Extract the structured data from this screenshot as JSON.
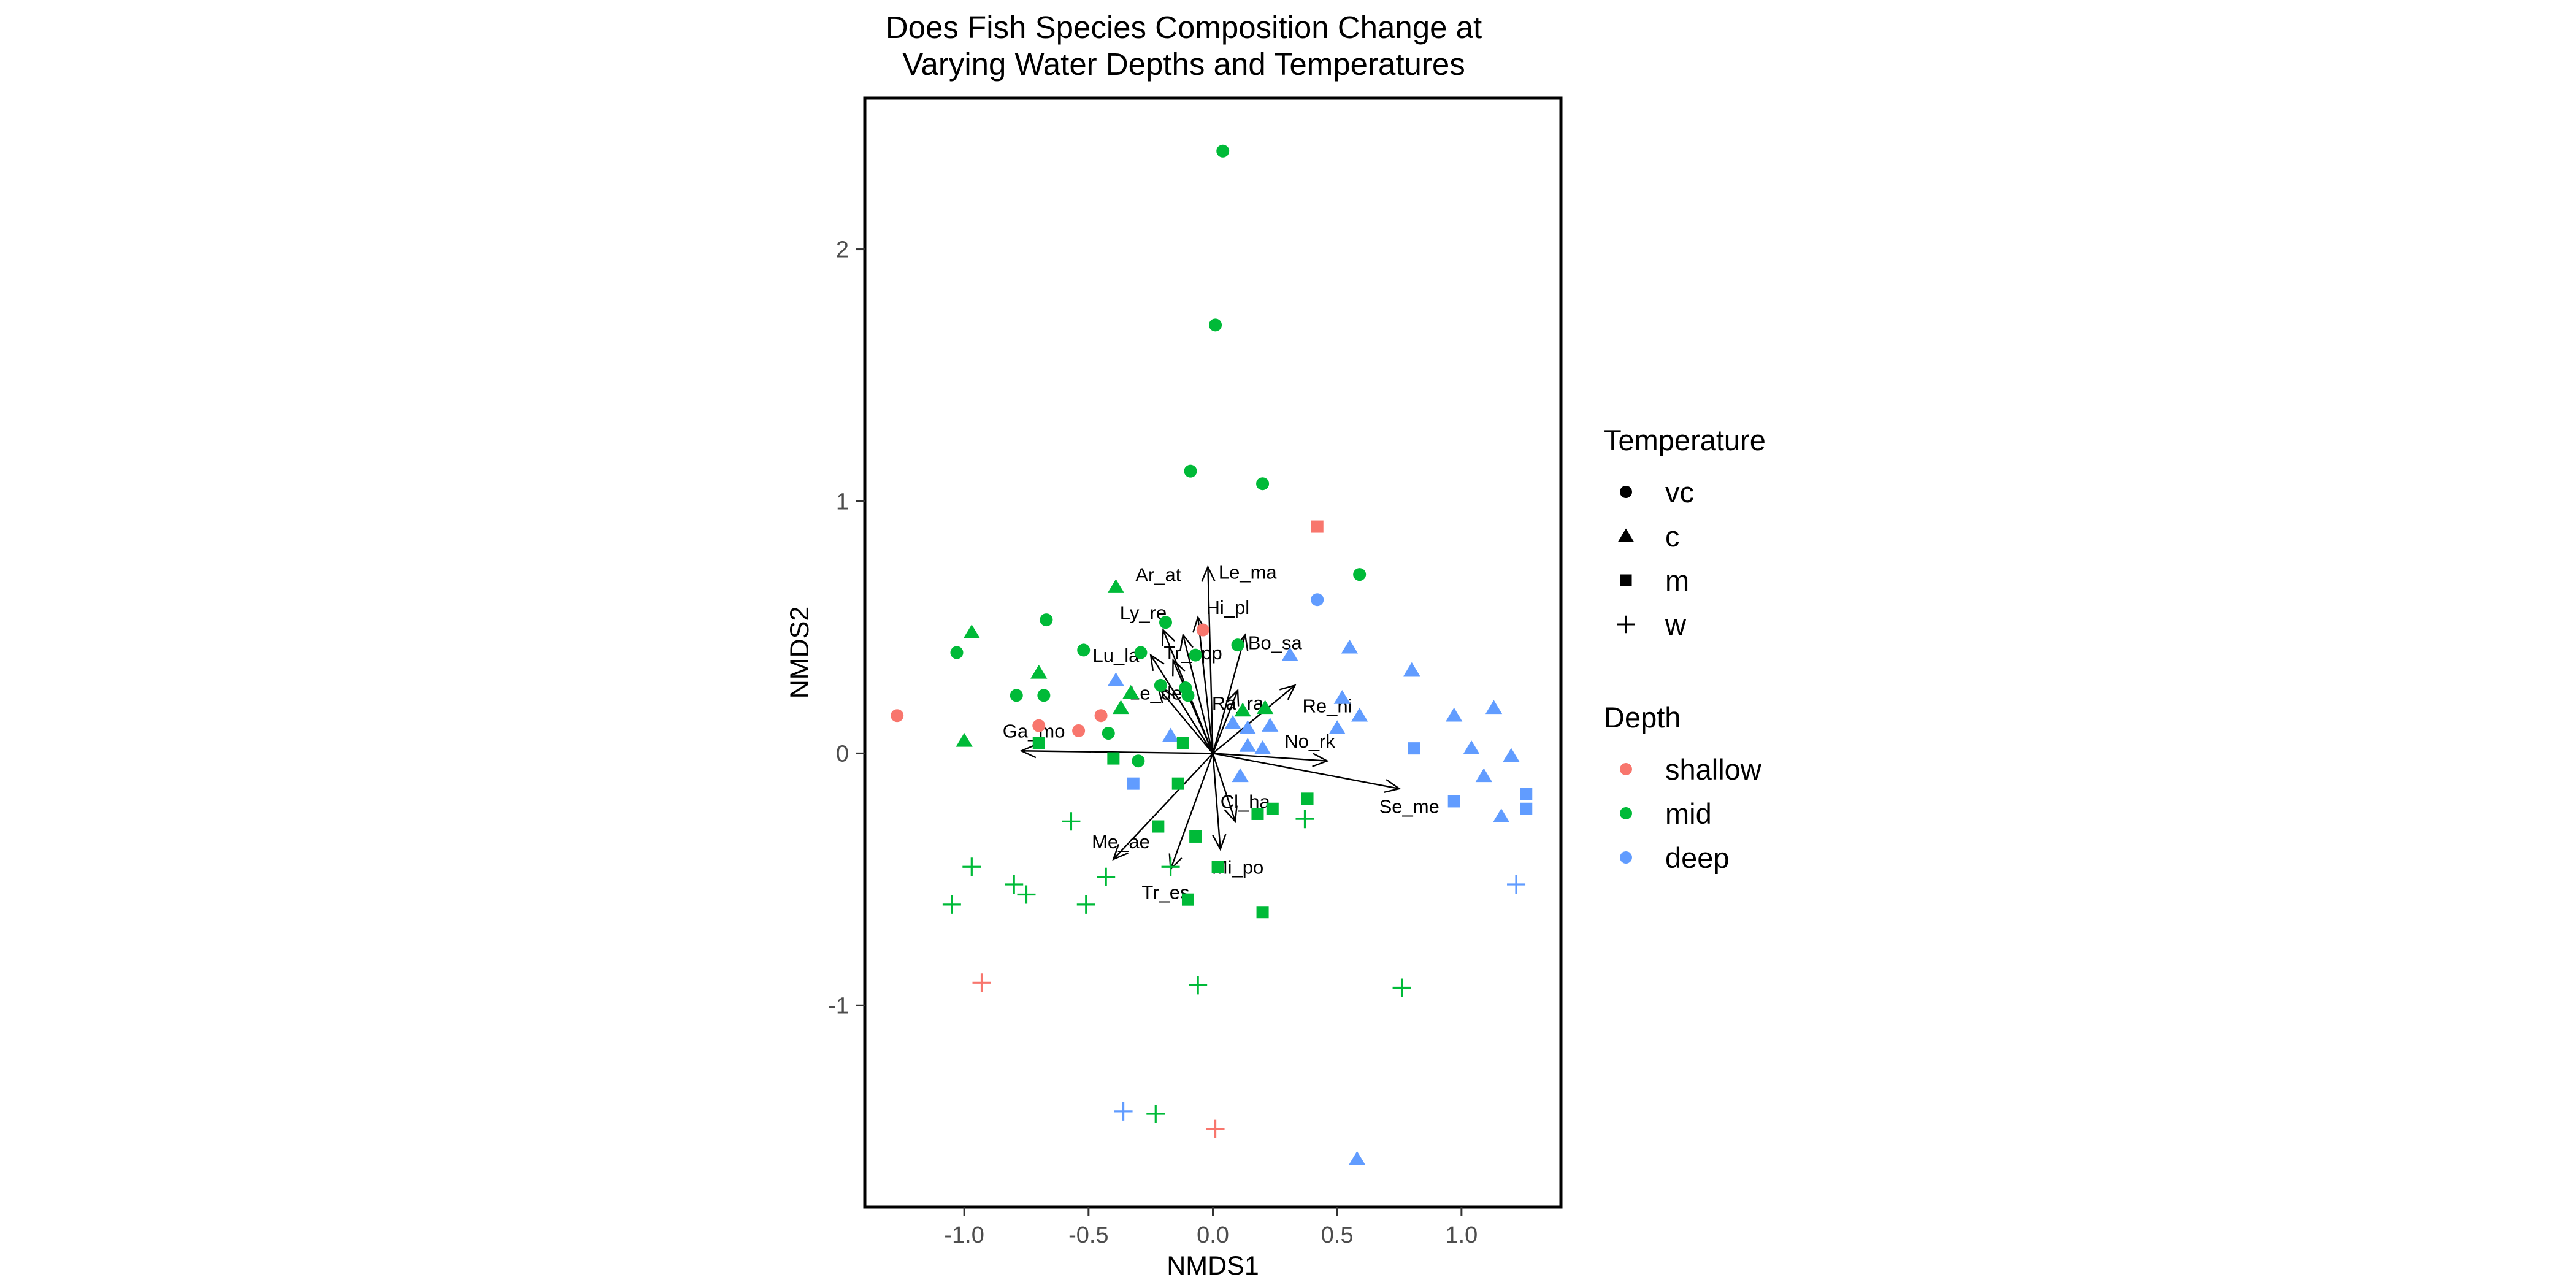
{
  "chart_data": {
    "type": "scatter",
    "title": "Does Fish Species Composition Change at\n Varying Water Depths and Temperatures",
    "xlabel": "NMDS1",
    "ylabel": "NMDS2",
    "xlim": [
      -1.4,
      1.4
    ],
    "ylim": [
      -1.8,
      2.6
    ],
    "xticks": [
      -1.0,
      -0.5,
      0.0,
      0.5,
      1.0
    ],
    "xtick_labels": [
      "-1.0",
      "-0.5",
      "0.0",
      "0.5",
      "1.0"
    ],
    "yticks": [
      -1,
      0,
      1,
      2
    ],
    "ytick_labels": [
      "-1",
      "0",
      "1",
      "2"
    ],
    "grid": false,
    "legend_position": "right",
    "legends": [
      {
        "title": "Temperature",
        "items": [
          {
            "label": "vc",
            "shape": "circle"
          },
          {
            "label": "c",
            "shape": "triangle"
          },
          {
            "label": "m",
            "shape": "square"
          },
          {
            "label": "w",
            "shape": "plus"
          }
        ]
      },
      {
        "title": "Depth",
        "items": [
          {
            "label": "shallow",
            "color": "#F8766D"
          },
          {
            "label": "mid",
            "color": "#00BA38"
          },
          {
            "label": "deep",
            "color": "#619CFF"
          }
        ]
      }
    ],
    "colors": {
      "shallow": "#F8766D",
      "mid": "#00BA38",
      "deep": "#619CFF"
    },
    "points": [
      {
        "x": 0.04,
        "y": 2.39,
        "depth": "mid",
        "temp": "vc"
      },
      {
        "x": 0.01,
        "y": 1.7,
        "depth": "mid",
        "temp": "vc"
      },
      {
        "x": -0.09,
        "y": 1.12,
        "depth": "mid",
        "temp": "vc"
      },
      {
        "x": 0.2,
        "y": 1.07,
        "depth": "mid",
        "temp": "vc"
      },
      {
        "x": 0.59,
        "y": 0.71,
        "depth": "mid",
        "temp": "vc"
      },
      {
        "x": -0.67,
        "y": 0.53,
        "depth": "mid",
        "temp": "vc"
      },
      {
        "x": -0.19,
        "y": 0.52,
        "depth": "mid",
        "temp": "vc"
      },
      {
        "x": -1.03,
        "y": 0.4,
        "depth": "mid",
        "temp": "vc"
      },
      {
        "x": -0.52,
        "y": 0.41,
        "depth": "mid",
        "temp": "vc"
      },
      {
        "x": -0.29,
        "y": 0.4,
        "depth": "mid",
        "temp": "vc"
      },
      {
        "x": 0.1,
        "y": 0.43,
        "depth": "mid",
        "temp": "vc"
      },
      {
        "x": -0.07,
        "y": 0.39,
        "depth": "mid",
        "temp": "vc"
      },
      {
        "x": -0.79,
        "y": 0.23,
        "depth": "mid",
        "temp": "vc"
      },
      {
        "x": -0.68,
        "y": 0.23,
        "depth": "mid",
        "temp": "vc"
      },
      {
        "x": -0.21,
        "y": 0.27,
        "depth": "mid",
        "temp": "vc"
      },
      {
        "x": -0.11,
        "y": 0.26,
        "depth": "mid",
        "temp": "vc"
      },
      {
        "x": -0.42,
        "y": 0.08,
        "depth": "mid",
        "temp": "vc"
      },
      {
        "x": -0.3,
        "y": -0.03,
        "depth": "mid",
        "temp": "vc"
      },
      {
        "x": -0.1,
        "y": 0.23,
        "depth": "mid",
        "temp": "vc"
      },
      {
        "x": -1.27,
        "y": 0.15,
        "depth": "shallow",
        "temp": "vc"
      },
      {
        "x": -0.7,
        "y": 0.11,
        "depth": "shallow",
        "temp": "vc"
      },
      {
        "x": -0.54,
        "y": 0.09,
        "depth": "shallow",
        "temp": "vc"
      },
      {
        "x": -0.45,
        "y": 0.15,
        "depth": "shallow",
        "temp": "vc"
      },
      {
        "x": -0.04,
        "y": 0.49,
        "depth": "shallow",
        "temp": "vc"
      },
      {
        "x": 0.42,
        "y": 0.61,
        "depth": "deep",
        "temp": "vc"
      },
      {
        "x": -0.39,
        "y": 0.66,
        "depth": "mid",
        "temp": "c"
      },
      {
        "x": -0.97,
        "y": 0.48,
        "depth": "mid",
        "temp": "c"
      },
      {
        "x": -0.7,
        "y": 0.32,
        "depth": "mid",
        "temp": "c"
      },
      {
        "x": -1.0,
        "y": 0.05,
        "depth": "mid",
        "temp": "c"
      },
      {
        "x": -0.37,
        "y": 0.18,
        "depth": "mid",
        "temp": "c"
      },
      {
        "x": -0.33,
        "y": 0.24,
        "depth": "mid",
        "temp": "c"
      },
      {
        "x": 0.12,
        "y": 0.17,
        "depth": "mid",
        "temp": "c"
      },
      {
        "x": 0.21,
        "y": 0.18,
        "depth": "mid",
        "temp": "c"
      },
      {
        "x": -0.39,
        "y": 0.29,
        "depth": "deep",
        "temp": "c"
      },
      {
        "x": 0.31,
        "y": 0.39,
        "depth": "deep",
        "temp": "c"
      },
      {
        "x": 0.55,
        "y": 0.42,
        "depth": "deep",
        "temp": "c"
      },
      {
        "x": 0.8,
        "y": 0.33,
        "depth": "deep",
        "temp": "c"
      },
      {
        "x": 0.52,
        "y": 0.22,
        "depth": "deep",
        "temp": "c"
      },
      {
        "x": 0.59,
        "y": 0.15,
        "depth": "deep",
        "temp": "c"
      },
      {
        "x": 0.08,
        "y": 0.12,
        "depth": "deep",
        "temp": "c"
      },
      {
        "x": 0.14,
        "y": 0.1,
        "depth": "deep",
        "temp": "c"
      },
      {
        "x": 0.23,
        "y": 0.11,
        "depth": "deep",
        "temp": "c"
      },
      {
        "x": 0.5,
        "y": 0.1,
        "depth": "deep",
        "temp": "c"
      },
      {
        "x": -0.17,
        "y": 0.07,
        "depth": "deep",
        "temp": "c"
      },
      {
        "x": 0.14,
        "y": 0.03,
        "depth": "deep",
        "temp": "c"
      },
      {
        "x": 0.2,
        "y": 0.02,
        "depth": "deep",
        "temp": "c"
      },
      {
        "x": 0.11,
        "y": -0.09,
        "depth": "deep",
        "temp": "c"
      },
      {
        "x": 0.97,
        "y": 0.15,
        "depth": "deep",
        "temp": "c"
      },
      {
        "x": 1.13,
        "y": 0.18,
        "depth": "deep",
        "temp": "c"
      },
      {
        "x": 1.04,
        "y": 0.02,
        "depth": "deep",
        "temp": "c"
      },
      {
        "x": 1.2,
        "y": -0.01,
        "depth": "deep",
        "temp": "c"
      },
      {
        "x": 1.09,
        "y": -0.09,
        "depth": "deep",
        "temp": "c"
      },
      {
        "x": 1.16,
        "y": -0.25,
        "depth": "deep",
        "temp": "c"
      },
      {
        "x": 0.58,
        "y": -1.61,
        "depth": "deep",
        "temp": "c"
      },
      {
        "x": 0.42,
        "y": 0.9,
        "depth": "shallow",
        "temp": "m"
      },
      {
        "x": -0.7,
        "y": 0.04,
        "depth": "mid",
        "temp": "m"
      },
      {
        "x": -0.4,
        "y": -0.02,
        "depth": "mid",
        "temp": "m"
      },
      {
        "x": -0.12,
        "y": 0.04,
        "depth": "mid",
        "temp": "m"
      },
      {
        "x": -0.14,
        "y": -0.12,
        "depth": "mid",
        "temp": "m"
      },
      {
        "x": -0.22,
        "y": -0.29,
        "depth": "mid",
        "temp": "m"
      },
      {
        "x": -0.07,
        "y": -0.33,
        "depth": "mid",
        "temp": "m"
      },
      {
        "x": 0.18,
        "y": -0.24,
        "depth": "mid",
        "temp": "m"
      },
      {
        "x": 0.24,
        "y": -0.22,
        "depth": "mid",
        "temp": "m"
      },
      {
        "x": 0.38,
        "y": -0.18,
        "depth": "mid",
        "temp": "m"
      },
      {
        "x": 0.02,
        "y": -0.45,
        "depth": "mid",
        "temp": "m"
      },
      {
        "x": -0.1,
        "y": -0.58,
        "depth": "mid",
        "temp": "m"
      },
      {
        "x": 0.2,
        "y": -0.63,
        "depth": "mid",
        "temp": "m"
      },
      {
        "x": -0.32,
        "y": -0.12,
        "depth": "deep",
        "temp": "m"
      },
      {
        "x": 0.81,
        "y": 0.02,
        "depth": "deep",
        "temp": "m"
      },
      {
        "x": 0.97,
        "y": -0.19,
        "depth": "deep",
        "temp": "m"
      },
      {
        "x": 1.26,
        "y": -0.16,
        "depth": "deep",
        "temp": "m"
      },
      {
        "x": 1.26,
        "y": -0.22,
        "depth": "deep",
        "temp": "m"
      },
      {
        "x": -0.57,
        "y": -0.27,
        "depth": "mid",
        "temp": "w"
      },
      {
        "x": 0.37,
        "y": -0.26,
        "depth": "mid",
        "temp": "w"
      },
      {
        "x": -0.97,
        "y": -0.45,
        "depth": "mid",
        "temp": "w"
      },
      {
        "x": -0.43,
        "y": -0.49,
        "depth": "mid",
        "temp": "w"
      },
      {
        "x": -0.8,
        "y": -0.52,
        "depth": "mid",
        "temp": "w"
      },
      {
        "x": -0.75,
        "y": -0.56,
        "depth": "mid",
        "temp": "w"
      },
      {
        "x": -1.05,
        "y": -0.6,
        "depth": "mid",
        "temp": "w"
      },
      {
        "x": -0.51,
        "y": -0.6,
        "depth": "mid",
        "temp": "w"
      },
      {
        "x": -0.17,
        "y": -0.45,
        "depth": "mid",
        "temp": "w"
      },
      {
        "x": -0.06,
        "y": -0.92,
        "depth": "mid",
        "temp": "w"
      },
      {
        "x": 0.76,
        "y": -0.93,
        "depth": "mid",
        "temp": "w"
      },
      {
        "x": -0.23,
        "y": -1.43,
        "depth": "mid",
        "temp": "w"
      },
      {
        "x": -0.93,
        "y": -0.91,
        "depth": "shallow",
        "temp": "w"
      },
      {
        "x": 0.01,
        "y": -1.49,
        "depth": "shallow",
        "temp": "w"
      },
      {
        "x": -0.36,
        "y": -1.42,
        "depth": "deep",
        "temp": "w"
      },
      {
        "x": 1.22,
        "y": -0.52,
        "depth": "deep",
        "temp": "w"
      }
    ],
    "vectors": [
      {
        "label": "Ar_at",
        "x": -0.12,
        "y": 0.47,
        "lx": -0.22,
        "ly": 0.71
      },
      {
        "label": "Le_ma",
        "x": -0.02,
        "y": 0.74,
        "lx": 0.14,
        "ly": 0.72
      },
      {
        "label": "Hi_pl",
        "x": -0.06,
        "y": 0.54,
        "lx": 0.06,
        "ly": 0.58
      },
      {
        "label": "Ly_re",
        "x": -0.2,
        "y": 0.49,
        "lx": -0.28,
        "ly": 0.56
      },
      {
        "label": "Bo_sa",
        "x": 0.13,
        "y": 0.47,
        "lx": 0.25,
        "ly": 0.44
      },
      {
        "label": "Tr_spp",
        "x": -0.16,
        "y": 0.37,
        "lx": -0.08,
        "ly": 0.4
      },
      {
        "label": "Lu_la",
        "x": -0.25,
        "y": 0.39,
        "lx": -0.39,
        "ly": 0.39
      },
      {
        "label": "Le_de",
        "x": -0.22,
        "y": 0.26,
        "lx": -0.23,
        "ly": 0.24
      },
      {
        "label": "Ra_ra",
        "x": 0.1,
        "y": 0.25,
        "lx": 0.1,
        "ly": 0.2
      },
      {
        "label": "Re_hi",
        "x": 0.33,
        "y": 0.27,
        "lx": 0.46,
        "ly": 0.19
      },
      {
        "label": "Ga_mo",
        "x": -0.77,
        "y": 0.01,
        "lx": -0.72,
        "ly": 0.09
      },
      {
        "label": "No_rk",
        "x": 0.46,
        "y": -0.03,
        "lx": 0.39,
        "ly": 0.05
      },
      {
        "label": "Se_me",
        "x": 0.75,
        "y": -0.14,
        "lx": 0.79,
        "ly": -0.21
      },
      {
        "label": "Cl_ha",
        "x": 0.09,
        "y": -0.27,
        "lx": 0.13,
        "ly": -0.19
      },
      {
        "label": "Me_ae",
        "x": -0.4,
        "y": -0.42,
        "lx": -0.37,
        "ly": -0.35
      },
      {
        "label": "Mi_po",
        "x": 0.03,
        "y": -0.38,
        "lx": 0.1,
        "ly": -0.45
      },
      {
        "label": "Tr_es",
        "x": -0.17,
        "y": -0.46,
        "lx": -0.19,
        "ly": -0.55
      }
    ]
  }
}
